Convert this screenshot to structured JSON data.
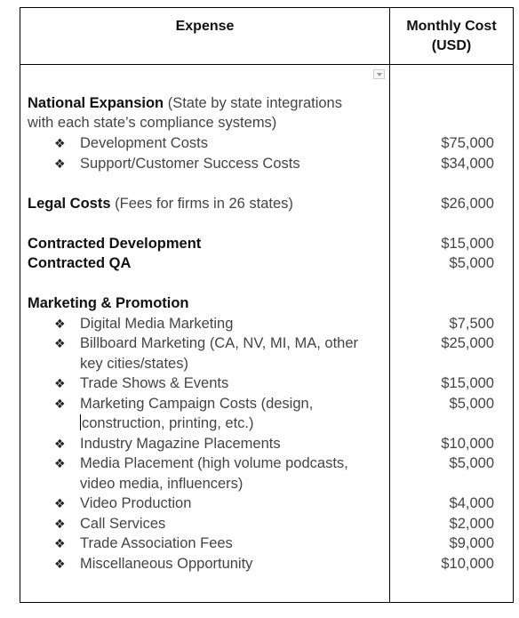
{
  "header": {
    "expense": "Expense",
    "cost_line1": "Monthly Cost",
    "cost_line2": "(USD)"
  },
  "bullet": "❖",
  "sections": {
    "national": {
      "title": "National Expansion",
      "desc1": " (State by state integrations",
      "desc2": "with each state’s compliance systems)",
      "items": [
        {
          "label": "Development Costs",
          "cost": "$75,000"
        },
        {
          "label": "Support/Customer Success Costs",
          "cost": "$34,000"
        }
      ]
    },
    "legal": {
      "title": "Legal Costs",
      "desc": " (Fees for firms in 26 states)",
      "cost": "$26,000"
    },
    "contracted": [
      {
        "label": "Contracted Development",
        "cost": "$15,000"
      },
      {
        "label": "Contracted QA",
        "cost": "$5,000"
      }
    ],
    "marketing": {
      "title": "Marketing & Promotion",
      "items": [
        {
          "label": "Digital Media Marketing",
          "cost": "$7,500"
        },
        {
          "label": "Billboard Marketing (CA, NV, MI, MA, other",
          "cont": "key cities/states)",
          "cost": "$25,000"
        },
        {
          "label": "Trade Shows & Events",
          "cost": "$15,000"
        },
        {
          "label": "Marketing Campaign Costs (design,",
          "cont": "construction, printing, etc.)",
          "cost": "$5,000"
        },
        {
          "label": "Industry Magazine Placements",
          "cost": "$10,000"
        },
        {
          "label": "Media Placement (high volume podcasts,",
          "cont": "video media, influencers)",
          "cost": "$5,000"
        },
        {
          "label": "Video Production",
          "cost": "$4,000"
        },
        {
          "label": "Call Services",
          "cost": "$2,000"
        },
        {
          "label": "Trade Association Fees",
          "cost": "$9,000"
        },
        {
          "label": "Miscellaneous Opportunity",
          "cost": "$10,000"
        }
      ]
    }
  }
}
